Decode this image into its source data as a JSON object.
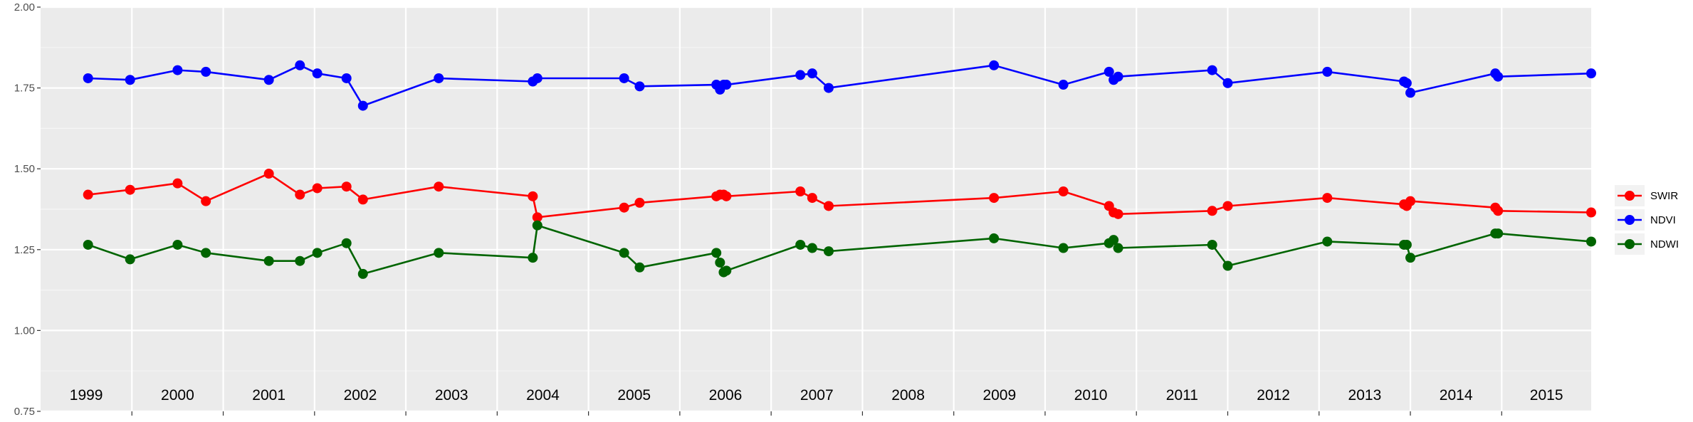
{
  "chart_data": {
    "type": "line",
    "title": "",
    "xlabel": "",
    "ylabel": "",
    "ylim": [
      0.75,
      2.0
    ],
    "yticks": [
      0.75,
      1.0,
      1.25,
      1.5,
      1.75,
      2.0
    ],
    "ytick_labels": [
      "0.75",
      "1.00",
      "1.25",
      "1.50",
      "1.75",
      "2.00"
    ],
    "xlim": [
      1999.0,
      2015.98
    ],
    "year_labels": [
      "1999",
      "2000",
      "2001",
      "2002",
      "2003",
      "2004",
      "2005",
      "2006",
      "2007",
      "2008",
      "2009",
      "2010",
      "2011",
      "2012",
      "2013",
      "2014",
      "2015"
    ],
    "grid": true,
    "legend_position": "right",
    "series": [
      {
        "name": "SWIR",
        "color": "#ff0000",
        "x": [
          1999.52,
          1999.98,
          2000.5,
          2000.81,
          2001.5,
          2001.84,
          2002.03,
          2002.35,
          2002.53,
          2003.36,
          2004.39,
          2004.44,
          2005.39,
          2005.56,
          2006.4,
          2006.44,
          2006.48,
          2006.51,
          2007.32,
          2007.45,
          2007.63,
          2009.44,
          2010.2,
          2010.7,
          2010.75,
          2010.8,
          2011.83,
          2012.0,
          2013.09,
          2013.93,
          2013.96,
          2014.0,
          2014.93,
          2014.96,
          2015.98
        ],
        "y": [
          1.42,
          1.435,
          1.455,
          1.4,
          1.485,
          1.42,
          1.44,
          1.445,
          1.405,
          1.445,
          1.415,
          1.35,
          1.38,
          1.395,
          1.415,
          1.42,
          1.42,
          1.415,
          1.43,
          1.41,
          1.385,
          1.41,
          1.43,
          1.385,
          1.365,
          1.36,
          1.37,
          1.385,
          1.41,
          1.39,
          1.385,
          1.4,
          1.38,
          1.37,
          1.365
        ]
      },
      {
        "name": "NDVI",
        "color": "#0000ff",
        "x": [
          1999.52,
          1999.98,
          2000.5,
          2000.81,
          2001.5,
          2001.84,
          2002.03,
          2002.35,
          2002.53,
          2003.36,
          2004.39,
          2004.44,
          2005.39,
          2005.56,
          2006.4,
          2006.44,
          2006.48,
          2006.51,
          2007.32,
          2007.45,
          2007.63,
          2009.44,
          2010.2,
          2010.7,
          2010.75,
          2010.8,
          2011.83,
          2012.0,
          2013.09,
          2013.93,
          2013.96,
          2014.0,
          2014.93,
          2014.96,
          2015.98
        ],
        "y": [
          1.78,
          1.775,
          1.805,
          1.8,
          1.775,
          1.82,
          1.795,
          1.78,
          1.695,
          1.78,
          1.77,
          1.78,
          1.78,
          1.755,
          1.76,
          1.745,
          1.76,
          1.76,
          1.79,
          1.795,
          1.75,
          1.82,
          1.76,
          1.8,
          1.775,
          1.785,
          1.805,
          1.765,
          1.8,
          1.77,
          1.765,
          1.735,
          1.795,
          1.785,
          1.795
        ]
      },
      {
        "name": "NDWI",
        "color": "#006400",
        "x": [
          1999.52,
          1999.98,
          2000.5,
          2000.81,
          2001.5,
          2001.84,
          2002.03,
          2002.35,
          2002.53,
          2003.36,
          2004.39,
          2004.44,
          2005.39,
          2005.56,
          2006.4,
          2006.44,
          2006.48,
          2006.51,
          2007.32,
          2007.45,
          2007.63,
          2009.44,
          2010.2,
          2010.7,
          2010.75,
          2010.8,
          2011.83,
          2012.0,
          2013.09,
          2013.93,
          2013.96,
          2014.0,
          2014.93,
          2014.96,
          2015.98
        ],
        "y": [
          1.265,
          1.22,
          1.265,
          1.24,
          1.215,
          1.215,
          1.24,
          1.27,
          1.175,
          1.24,
          1.225,
          1.325,
          1.24,
          1.195,
          1.24,
          1.21,
          1.18,
          1.185,
          1.265,
          1.255,
          1.245,
          1.285,
          1.255,
          1.27,
          1.28,
          1.255,
          1.265,
          1.2,
          1.275,
          1.265,
          1.265,
          1.225,
          1.3,
          1.3,
          1.275
        ]
      }
    ]
  }
}
